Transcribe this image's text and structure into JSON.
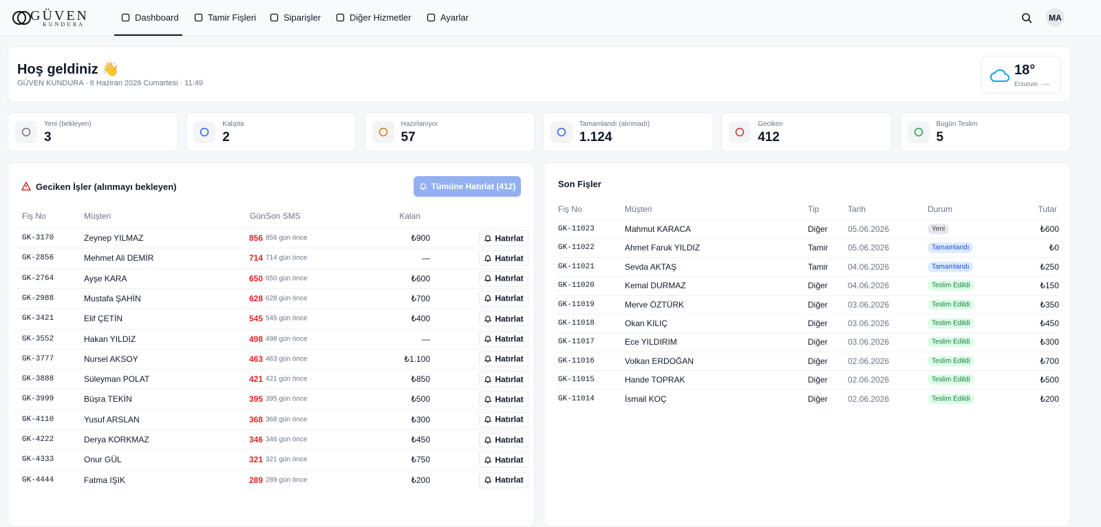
{
  "header": {
    "logo": {
      "brand": "GÜVEN",
      "sub": "KUNDURA"
    },
    "nav": [
      "Dashboard",
      "Tamir Fişleri",
      "Siparişler",
      "Diğer Hizmetler",
      "Ayarlar"
    ],
    "avatar": "MA"
  },
  "welcome": {
    "title": "Hoş geldiniz 👋",
    "subtitle": "GÜVEN KUNDURA · 6 Haziran 2026 Cumartesi · 11:49",
    "weather": {
      "temp": "18°",
      "location": "Erzurum · —"
    }
  },
  "stats": [
    {
      "label": "Yeni (bekleyen)",
      "value": "3",
      "color": "#6b7280"
    },
    {
      "label": "Kalıpta",
      "value": "2",
      "color": "#2563eb"
    },
    {
      "label": "Hazırlanıyor",
      "value": "57",
      "color": "#d97706"
    },
    {
      "label": "Tamamlandı (alınmadı)",
      "value": "1.124",
      "color": "#2563eb"
    },
    {
      "label": "Geciken",
      "value": "412",
      "color": "#dc2626"
    },
    {
      "label": "Bugün Teslim",
      "value": "5",
      "color": "#16a34a"
    }
  ],
  "overdue": {
    "title": "Geciken İşler (alınmayı bekleyen)",
    "button": "Tümüne Hatırlat (412)",
    "columns": [
      "Fiş No",
      "Müşteri",
      "Gün",
      "Son SMS",
      "Kalan"
    ],
    "remind_label": "Hatırlat",
    "rows": [
      {
        "no": "GK-3170",
        "customer": "Zeynep YILMAZ",
        "days": "856",
        "sms": "856 gün önce",
        "remaining": "₺900"
      },
      {
        "no": "GK-2856",
        "customer": "Mehmet Ali DEMİR",
        "days": "714",
        "sms": "714 gün önce",
        "remaining": "—"
      },
      {
        "no": "GK-2764",
        "customer": "Ayşe KARA",
        "days": "650",
        "sms": "650 gün önce",
        "remaining": "₺600"
      },
      {
        "no": "GK-2988",
        "customer": "Mustafa ŞAHİN",
        "days": "628",
        "sms": "628 gün önce",
        "remaining": "₺700"
      },
      {
        "no": "GK-3421",
        "customer": "Elif ÇETİN",
        "days": "545",
        "sms": "545 gün önce",
        "remaining": "₺400"
      },
      {
        "no": "GK-3552",
        "customer": "Hakan YILDIZ",
        "days": "498",
        "sms": "498 gün önce",
        "remaining": "—"
      },
      {
        "no": "GK-3777",
        "customer": "Nursel AKSOY",
        "days": "463",
        "sms": "463 gün önce",
        "remaining": "₺1.100"
      },
      {
        "no": "GK-3888",
        "customer": "Süleyman POLAT",
        "days": "421",
        "sms": "421 gün önce",
        "remaining": "₺850"
      },
      {
        "no": "GK-3999",
        "customer": "Büşra TEKİN",
        "days": "395",
        "sms": "395 gün önce",
        "remaining": "₺500"
      },
      {
        "no": "GK-4110",
        "customer": "Yusuf ARSLAN",
        "days": "368",
        "sms": "368 gün önce",
        "remaining": "₺300"
      },
      {
        "no": "GK-4222",
        "customer": "Derya KORKMAZ",
        "days": "346",
        "sms": "346 gün önce",
        "remaining": "₺450"
      },
      {
        "no": "GK-4333",
        "customer": "Onur GÜL",
        "days": "321",
        "sms": "321 gün önce",
        "remaining": "₺750"
      },
      {
        "no": "GK-4444",
        "customer": "Fatma IŞIK",
        "days": "289",
        "sms": "289 gün önce",
        "remaining": "₺200"
      }
    ]
  },
  "recent": {
    "title": "Son Fişler",
    "columns": [
      "Fiş No",
      "Müşteri",
      "Tip",
      "Tarih",
      "Durum",
      "Tutar"
    ],
    "rows": [
      {
        "no": "GK-11023",
        "customer": "Mahmut KARACA",
        "type": "Diğer",
        "date": "05.06.2026",
        "status": "Yeni",
        "status_color": "gray",
        "amount": "₺600"
      },
      {
        "no": "GK-11022",
        "customer": "Ahmet Faruk YILDIZ",
        "type": "Tamir",
        "date": "05.06.2026",
        "status": "Tamamlandı",
        "status_color": "blue",
        "amount": "₺0"
      },
      {
        "no": "GK-11021",
        "customer": "Sevda AKTAŞ",
        "type": "Tamir",
        "date": "04.06.2026",
        "status": "Tamamlandı",
        "status_color": "blue",
        "amount": "₺250"
      },
      {
        "no": "GK-11020",
        "customer": "Kemal DURMAZ",
        "type": "Diğer",
        "date": "04.06.2026",
        "status": "Teslim Edildi",
        "status_color": "green",
        "amount": "₺150"
      },
      {
        "no": "GK-11019",
        "customer": "Merve ÖZTÜRK",
        "type": "Diğer",
        "date": "03.06.2026",
        "status": "Teslim Edildi",
        "status_color": "green",
        "amount": "₺350"
      },
      {
        "no": "GK-11018",
        "customer": "Okan KILIÇ",
        "type": "Diğer",
        "date": "03.06.2026",
        "status": "Teslim Edildi",
        "status_color": "green",
        "amount": "₺450"
      },
      {
        "no": "GK-11017",
        "customer": "Ece YILDIRIM",
        "type": "Diğer",
        "date": "03.06.2026",
        "status": "Teslim Edildi",
        "status_color": "green",
        "amount": "₺300"
      },
      {
        "no": "GK-11016",
        "customer": "Volkan ERDOĞAN",
        "type": "Diğer",
        "date": "02.06.2026",
        "status": "Teslim Edildi",
        "status_color": "green",
        "amount": "₺700"
      },
      {
        "no": "GK-11015",
        "customer": "Hande TOPRAK",
        "type": "Diğer",
        "date": "02.06.2026",
        "status": "Teslim Edildi",
        "status_color": "green",
        "amount": "₺500"
      },
      {
        "no": "GK-11014",
        "customer": "İsmail KOÇ",
        "type": "Diğer",
        "date": "02.06.2026",
        "status": "Teslim Edildi",
        "status_color": "green",
        "amount": "₺200"
      }
    ]
  }
}
